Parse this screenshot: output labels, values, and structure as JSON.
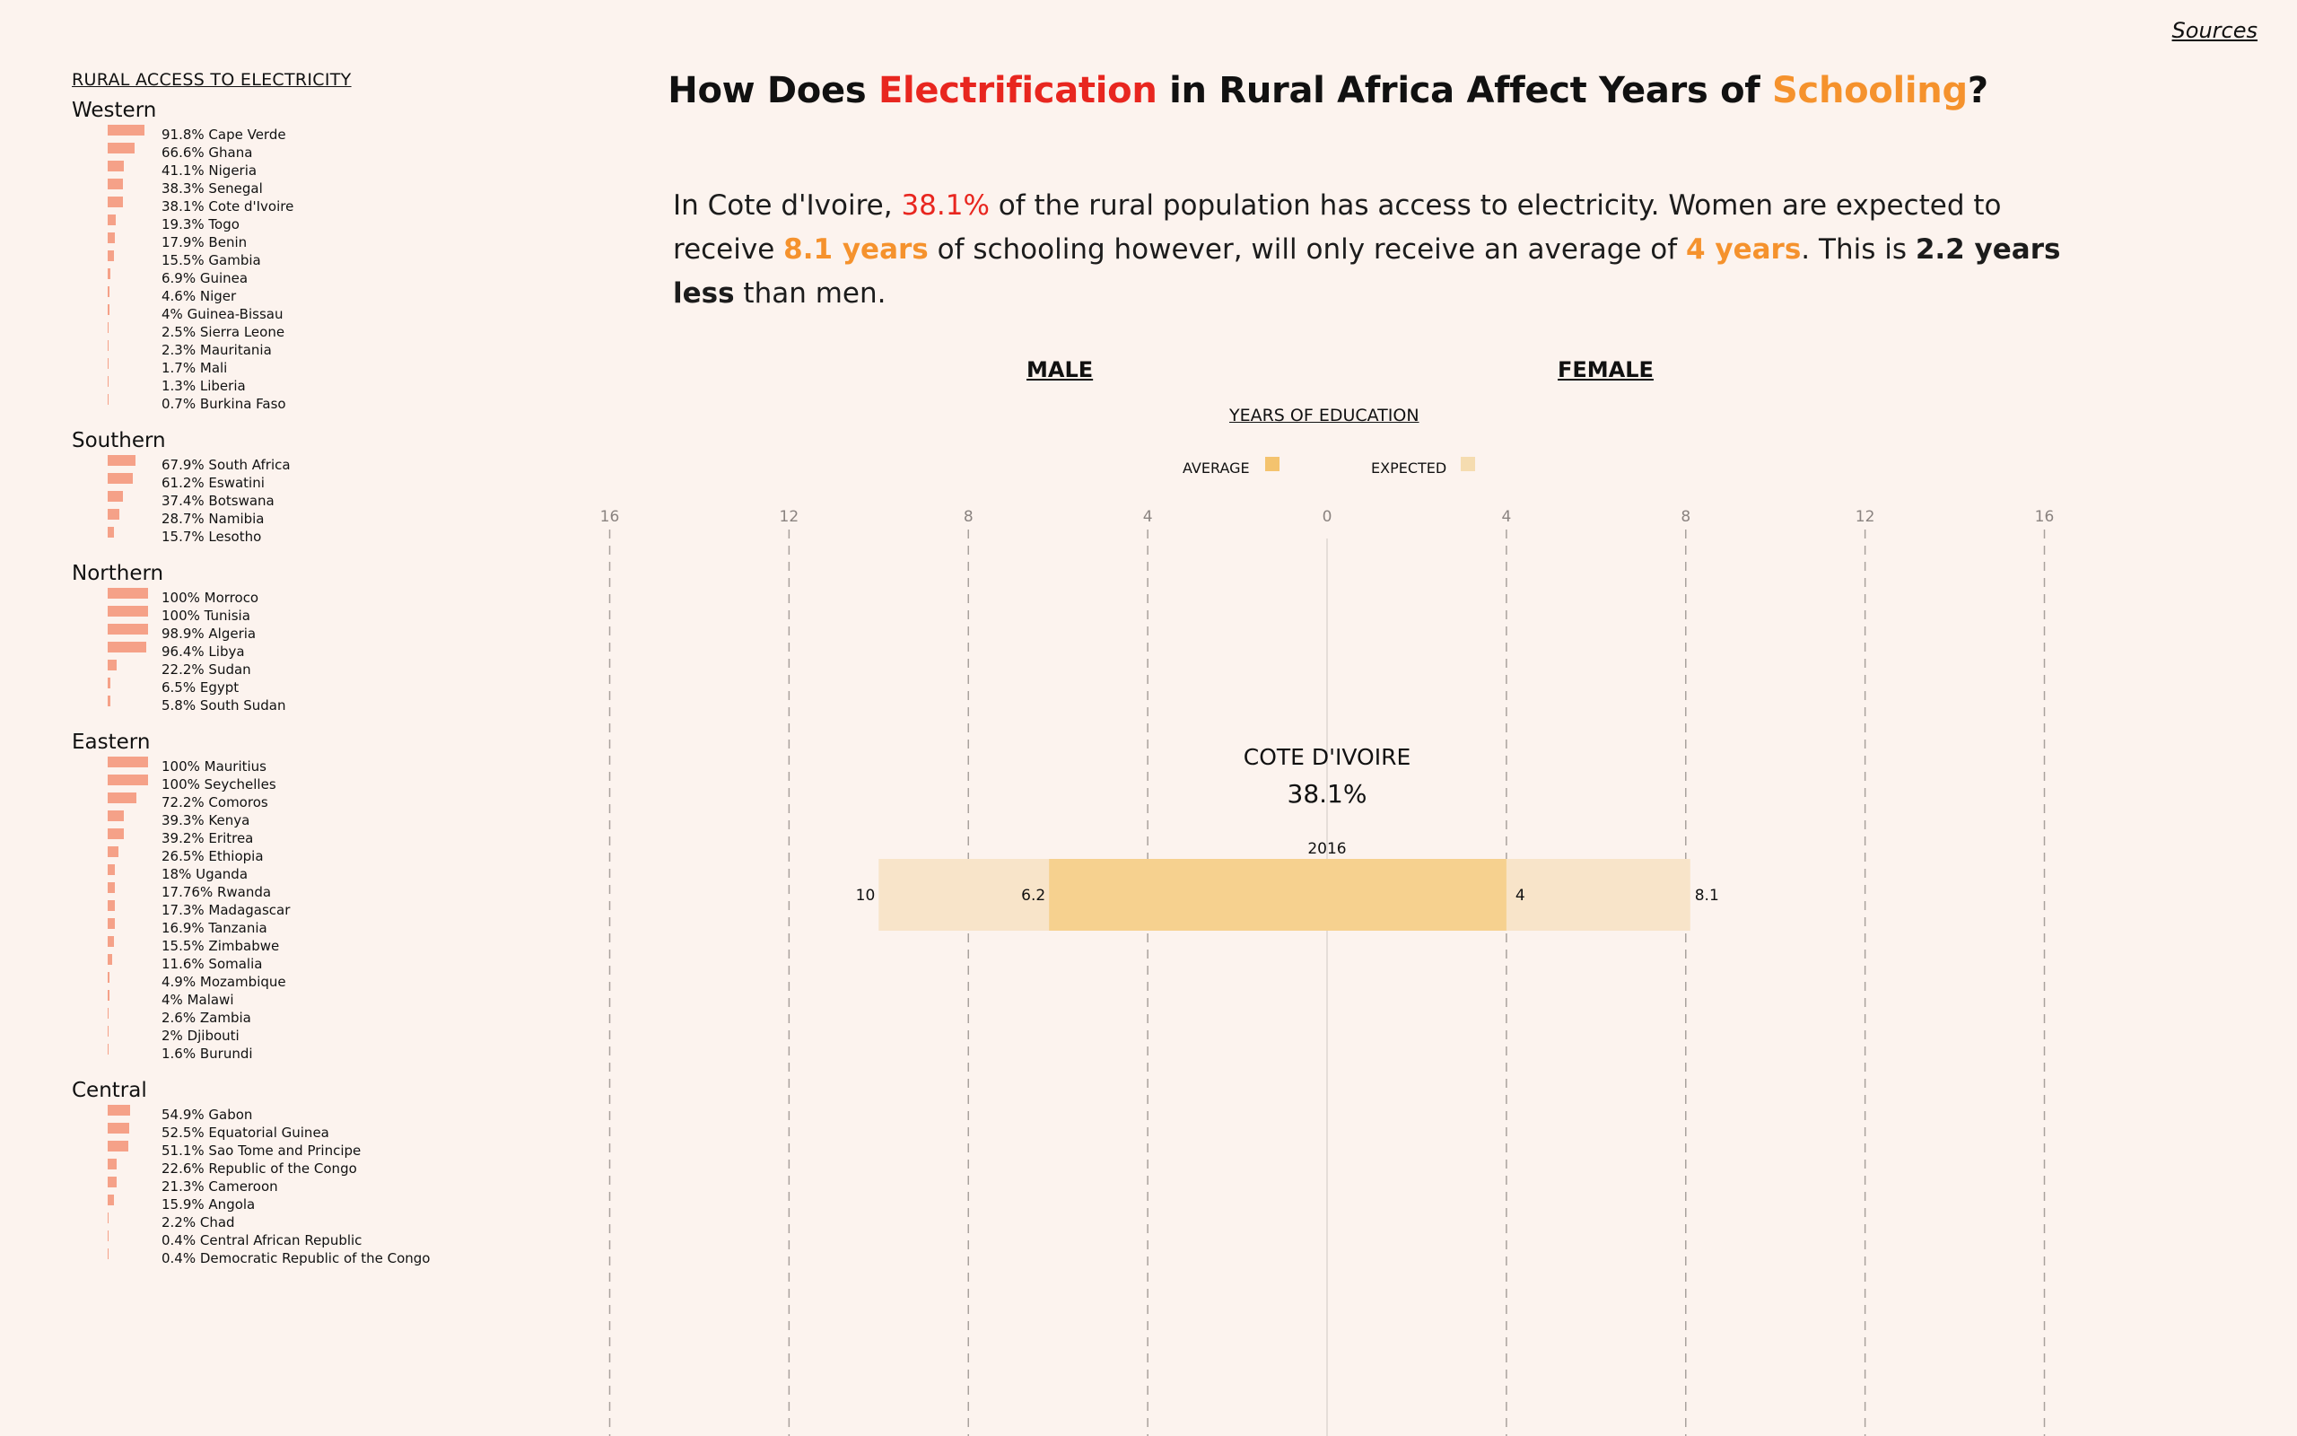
{
  "header": {
    "sources_label": "Sources"
  },
  "sidebar": {
    "title": "RURAL ACCESS TO ELECTRICITY",
    "regions": [
      {
        "name": "Western",
        "countries": [
          {
            "label": "91.8% Cape Verde",
            "value": 91.8
          },
          {
            "label": "66.6% Ghana",
            "value": 66.6
          },
          {
            "label": "41.1% Nigeria",
            "value": 41.1
          },
          {
            "label": "38.3% Senegal",
            "value": 38.3
          },
          {
            "label": "38.1% Cote d'Ivoire",
            "value": 38.1
          },
          {
            "label": "19.3% Togo",
            "value": 19.3
          },
          {
            "label": "17.9% Benin",
            "value": 17.9
          },
          {
            "label": "15.5% Gambia",
            "value": 15.5
          },
          {
            "label": "6.9% Guinea",
            "value": 6.9
          },
          {
            "label": "4.6% Niger",
            "value": 4.6
          },
          {
            "label": "4% Guinea-Bissau",
            "value": 4
          },
          {
            "label": "2.5% Sierra Leone",
            "value": 2.5
          },
          {
            "label": "2.3% Mauritania",
            "value": 2.3
          },
          {
            "label": "1.7% Mali",
            "value": 1.7
          },
          {
            "label": "1.3% Liberia",
            "value": 1.3
          },
          {
            "label": "0.7% Burkina Faso",
            "value": 0.7
          }
        ]
      },
      {
        "name": "Southern",
        "countries": [
          {
            "label": "67.9% South Africa",
            "value": 67.9
          },
          {
            "label": "61.2% Eswatini",
            "value": 61.2
          },
          {
            "label": "37.4% Botswana",
            "value": 37.4
          },
          {
            "label": "28.7% Namibia",
            "value": 28.7
          },
          {
            "label": "15.7% Lesotho",
            "value": 15.7
          }
        ]
      },
      {
        "name": "Northern",
        "countries": [
          {
            "label": "100% Morroco",
            "value": 100
          },
          {
            "label": "100% Tunisia",
            "value": 100
          },
          {
            "label": "98.9% Algeria",
            "value": 98.9
          },
          {
            "label": "96.4% Libya",
            "value": 96.4
          },
          {
            "label": "22.2% Sudan",
            "value": 22.2
          },
          {
            "label": "6.5% Egypt",
            "value": 6.5
          },
          {
            "label": "5.8% South Sudan",
            "value": 5.8
          }
        ]
      },
      {
        "name": "Eastern",
        "countries": [
          {
            "label": "100% Mauritius",
            "value": 100
          },
          {
            "label": "100% Seychelles",
            "value": 100
          },
          {
            "label": "72.2% Comoros",
            "value": 72.2
          },
          {
            "label": "39.3% Kenya",
            "value": 39.3
          },
          {
            "label": "39.2% Eritrea",
            "value": 39.2
          },
          {
            "label": "26.5% Ethiopia",
            "value": 26.5
          },
          {
            "label": "18% Uganda",
            "value": 18
          },
          {
            "label": "17.76% Rwanda",
            "value": 17.76
          },
          {
            "label": "17.3% Madagascar",
            "value": 17.3
          },
          {
            "label": "16.9% Tanzania",
            "value": 16.9
          },
          {
            "label": "15.5% Zimbabwe",
            "value": 15.5
          },
          {
            "label": "11.6% Somalia",
            "value": 11.6
          },
          {
            "label": "4.9% Mozambique",
            "value": 4.9
          },
          {
            "label": "4% Malawi",
            "value": 4
          },
          {
            "label": "2.6% Zambia",
            "value": 2.6
          },
          {
            "label": "2% Djibouti",
            "value": 2
          },
          {
            "label": "1.6% Burundi",
            "value": 1.6
          }
        ]
      },
      {
        "name": "Central",
        "countries": [
          {
            "label": "54.9% Gabon",
            "value": 54.9
          },
          {
            "label": "52.5% Equatorial Guinea",
            "value": 52.5
          },
          {
            "label": "51.1% Sao Tome and Principe",
            "value": 51.1
          },
          {
            "label": "22.6% Republic of the Congo",
            "value": 22.6
          },
          {
            "label": "21.3% Cameroon",
            "value": 21.3
          },
          {
            "label": "15.9% Angola",
            "value": 15.9
          },
          {
            "label": "2.2% Chad",
            "value": 2.2
          },
          {
            "label": "0.4% Central African Republic",
            "value": 0.4
          },
          {
            "label": "0.4% Democratic Republic of the Congo",
            "value": 0.4
          }
        ]
      }
    ]
  },
  "title": {
    "part1": "How Does ",
    "highlight1": "Electrification",
    "part2": " in Rural Africa Affect Years of ",
    "highlight2": "Schooling",
    "part3": "?"
  },
  "summary": {
    "t1": "In Cote d'Ivoire, ",
    "access": "38.1%",
    "t2": " of the rural population has access to electricity. Women are expected to receive ",
    "expected_years": "8.1 years",
    "t3": " of schooling however, will only receive an average of ",
    "average_years": "4 years",
    "t4": ". This is ",
    "gap": "2.2 years less",
    "t5": " than men."
  },
  "chart_labels": {
    "male": "MALE",
    "female": "FEMALE",
    "years_title": "YEARS OF EDUCATION",
    "legend_average": "AVERAGE",
    "legend_expected": "EXPECTED"
  },
  "colors": {
    "background": "#fcf3ee",
    "electrification": "#e8261f",
    "schooling": "#f5922d",
    "average_bar": "#f6d18f",
    "expected_bar": "#f8e4c9",
    "legend_average": "#f4c36e",
    "legend_expected": "#f5dcb0",
    "country_bar": "#f5a188"
  },
  "chart_data": {
    "type": "bar",
    "title": "YEARS OF EDUCATION",
    "x_ticks": [
      "16",
      "12",
      "8",
      "4",
      "0",
      "4",
      "8",
      "12",
      "16"
    ],
    "xlim": [
      -16,
      16
    ],
    "selected": {
      "country": "COTE D'IVOIRE",
      "access": "38.1%"
    },
    "categories": [
      "2016"
    ],
    "series": [
      {
        "name": "AVERAGE",
        "male": 6.2,
        "female": 4,
        "male_label": "6.2",
        "female_label": "4"
      },
      {
        "name": "EXPECTED",
        "male": 10,
        "female": 8.1,
        "male_label": "10",
        "female_label": "8.1"
      }
    ]
  }
}
